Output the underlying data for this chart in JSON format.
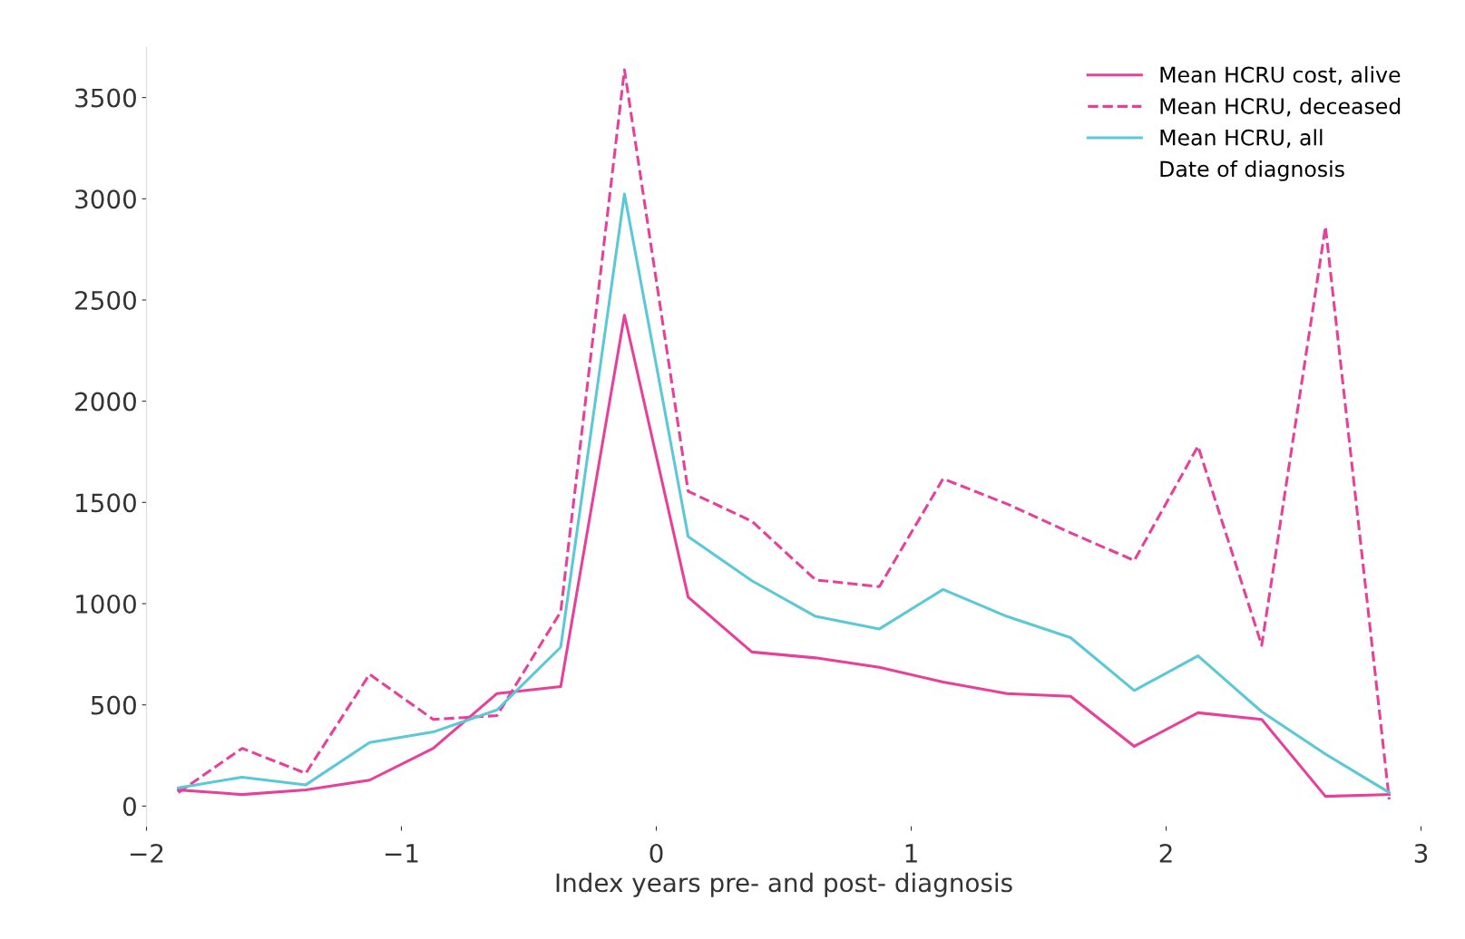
{
  "chart_data": {
    "type": "line",
    "xlabel": "Index years pre- and post- diagnosis",
    "x": [
      -1.875,
      -1.625,
      -1.375,
      -1.125,
      -0.875,
      -0.625,
      -0.375,
      -0.125,
      0.125,
      0.375,
      0.625,
      0.875,
      1.125,
      1.375,
      1.625,
      1.875,
      2.125,
      2.375,
      2.625,
      2.875
    ],
    "series": [
      {
        "name": "Mean HCRU cost, alive",
        "color": "#e8409a",
        "line_style": "solid",
        "values": [
          80,
          57,
          80,
          128,
          285,
          556,
          590,
          2425,
          1032,
          761,
          732,
          685,
          613,
          556,
          542,
          295,
          461,
          428,
          48,
          57
        ]
      },
      {
        "name": "Mean HCRU, deceased",
        "color": "#e8409a",
        "line_style": "dashed",
        "values": [
          67,
          285,
          162,
          651,
          428,
          447,
          960,
          3637,
          1555,
          1407,
          1117,
          1084,
          1617,
          1493,
          1350,
          1213,
          1778,
          794,
          2862,
          33
        ]
      },
      {
        "name": "Mean HCRU, all",
        "color": "#5bc8d8",
        "line_style": "solid",
        "values": [
          90,
          143,
          105,
          314,
          366,
          475,
          785,
          3024,
          1331,
          1113,
          937,
          875,
          1070,
          937,
          832,
          571,
          742,
          466,
          257,
          67
        ]
      }
    ],
    "annotations": [
      "Date of diagnosis"
    ],
    "xlim": [
      -2,
      3
    ],
    "xticks": [
      {
        "value": -2,
        "label": "−2"
      },
      {
        "value": -1,
        "label": "−1"
      },
      0,
      1,
      2,
      3
    ],
    "ylim": [
      -100,
      3750
    ],
    "yticks": [
      0,
      500,
      1000,
      1500,
      2000,
      2500,
      3000,
      3500
    ],
    "grid": false,
    "legend": "top right",
    "marker": "none"
  }
}
